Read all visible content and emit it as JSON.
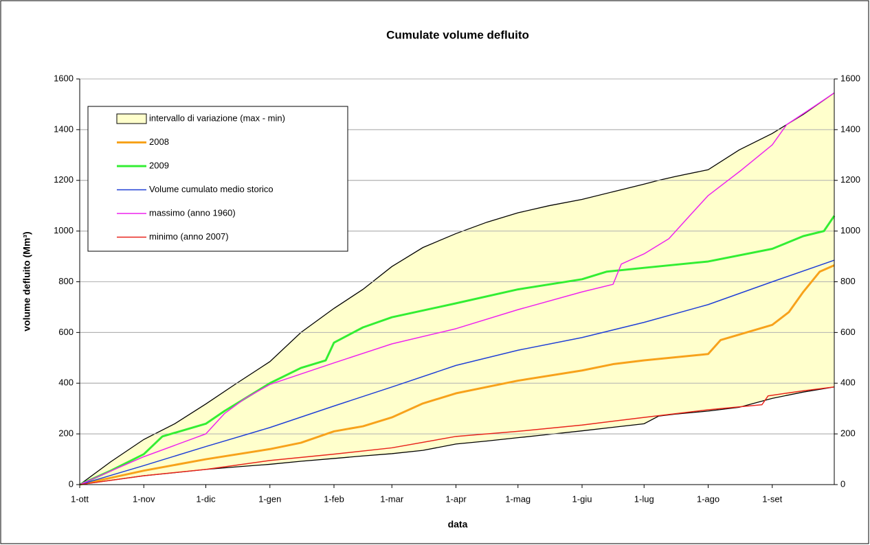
{
  "chart_data": {
    "type": "line",
    "title": "Cumulate volume defluito",
    "x_label": "data",
    "y_label": "volume defluito (Mm³)",
    "xlim": [
      0,
      365
    ],
    "xticks": [
      {
        "value": 0,
        "label": "1-ott"
      },
      {
        "value": 31,
        "label": "1-nov"
      },
      {
        "value": 61,
        "label": "1-dic"
      },
      {
        "value": 92,
        "label": "1-gen"
      },
      {
        "value": 123,
        "label": "1-feb"
      },
      {
        "value": 151,
        "label": "1-mar"
      },
      {
        "value": 182,
        "label": "1-apr"
      },
      {
        "value": 212,
        "label": "1-mag"
      },
      {
        "value": 243,
        "label": "1-giu"
      },
      {
        "value": 273,
        "label": "1-lug"
      },
      {
        "value": 304,
        "label": "1-ago"
      },
      {
        "value": 335,
        "label": "1-set"
      }
    ],
    "ylim": [
      0,
      1600
    ],
    "yticks": [
      0,
      200,
      400,
      600,
      800,
      1000,
      1200,
      1400,
      1600
    ],
    "y2lim": [
      0,
      1600
    ],
    "y2ticks": [
      0,
      200,
      400,
      600,
      800,
      1000,
      1200,
      1400,
      1600
    ],
    "grid": true,
    "legend": "upper-left",
    "series": [
      {
        "name": "intervallo di variazione (max - min)",
        "color": "#ffffcc",
        "type": "band",
        "x": [
          0,
          15,
          31,
          46,
          61,
          76,
          92,
          107,
          123,
          137,
          151,
          166,
          182,
          197,
          212,
          227,
          243,
          258,
          273,
          280,
          288,
          304,
          319,
          335,
          350,
          365
        ],
        "values": [
          0,
          90,
          178,
          240,
          318,
          400,
          485,
          600,
          695,
          770,
          860,
          935,
          990,
          1035,
          1072,
          1100,
          1125,
          1155,
          1185,
          1200,
          1215,
          1242,
          1320,
          1385,
          1460,
          1545
        ],
        "lower": [
          0,
          17,
          35,
          47,
          60,
          70,
          80,
          92,
          103,
          113,
          122,
          135,
          160,
          172,
          185,
          198,
          212,
          226,
          240,
          270,
          278,
          290,
          305,
          340,
          365,
          385
        ]
      },
      {
        "name": "2008",
        "color": "#f7a21b",
        "width": 3,
        "x": [
          0,
          31,
          61,
          92,
          107,
          123,
          137,
          151,
          166,
          182,
          212,
          243,
          258,
          273,
          304,
          310,
          335,
          343,
          350,
          358,
          365
        ],
        "values": [
          0,
          55,
          100,
          140,
          165,
          210,
          230,
          265,
          320,
          360,
          410,
          450,
          475,
          490,
          515,
          570,
          630,
          680,
          760,
          840,
          865
        ]
      },
      {
        "name": "2009",
        "color": "#33ee33",
        "width": 3,
        "x": [
          0,
          15,
          31,
          40,
          61,
          70,
          92,
          107,
          119,
          123,
          137,
          151,
          182,
          212,
          243,
          255,
          273,
          304,
          335,
          350,
          360,
          365
        ],
        "values": [
          0,
          55,
          120,
          190,
          240,
          290,
          400,
          460,
          490,
          560,
          620,
          660,
          715,
          770,
          810,
          840,
          855,
          880,
          930,
          980,
          1000,
          1060
        ]
      },
      {
        "name": "Volume cumulato medio storico",
        "color": "#1f3fd6",
        "width": 1.5,
        "x": [
          0,
          31,
          61,
          92,
          123,
          151,
          182,
          212,
          243,
          273,
          304,
          335,
          365
        ],
        "values": [
          0,
          75,
          150,
          225,
          310,
          385,
          470,
          530,
          580,
          640,
          710,
          800,
          885
        ]
      },
      {
        "name": "massimo (anno 1960)",
        "color": "#ee22ee",
        "width": 1.5,
        "x": [
          0,
          31,
          61,
          70,
          80,
          92,
          123,
          151,
          182,
          212,
          243,
          258,
          262,
          273,
          285,
          295,
          304,
          320,
          335,
          342,
          355,
          365
        ],
        "values": [
          0,
          110,
          200,
          280,
          340,
          395,
          480,
          555,
          615,
          690,
          760,
          790,
          870,
          910,
          970,
          1060,
          1140,
          1240,
          1340,
          1420,
          1490,
          1545
        ]
      },
      {
        "name": "minimo (anno 2007)",
        "color": "#e8231b",
        "width": 1.5,
        "x": [
          0,
          31,
          61,
          92,
          123,
          151,
          182,
          212,
          243,
          273,
          304,
          330,
          333,
          350,
          365
        ],
        "values": [
          0,
          35,
          60,
          95,
          120,
          145,
          190,
          210,
          235,
          265,
          295,
          315,
          350,
          370,
          385
        ]
      }
    ]
  }
}
